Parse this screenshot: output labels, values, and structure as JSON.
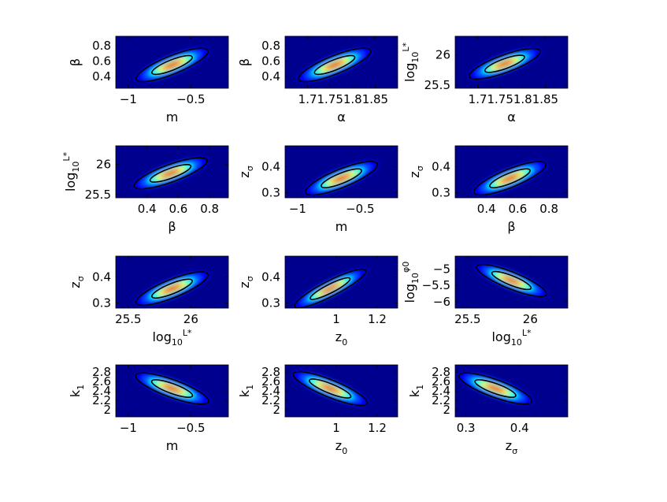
{
  "colormap": [
    "#00008f",
    "#0000ff",
    "#00ffff",
    "#ffff00",
    "#ff0000",
    "#800000"
  ],
  "chart_data": [
    {
      "type": "heatmap",
      "xlabel": {
        "base": "m",
        "sub": "",
        "sup": ""
      },
      "ylabel": {
        "base": "β",
        "sub": "",
        "sup": ""
      },
      "xlim": [
        -1.1,
        -0.2
      ],
      "ylim": [
        0.25,
        0.92
      ],
      "xticks": [
        {
          "v": -1,
          "label": "−1"
        },
        {
          "v": -0.5,
          "label": "−0.5"
        }
      ],
      "yticks": [
        {
          "v": 0.4,
          "label": "0.4"
        },
        {
          "v": 0.6,
          "label": "0.6"
        },
        {
          "v": 0.8,
          "label": "0.8"
        }
      ],
      "peak": {
        "x": -0.65,
        "y": 0.55
      },
      "tilt_deg": -22,
      "spread": [
        0.7,
        0.85
      ],
      "contour_levels": [
        0.35,
        0.06
      ]
    },
    {
      "type": "heatmap",
      "xlabel": {
        "base": "α",
        "sub": "",
        "sup": ""
      },
      "ylabel": {
        "base": "β",
        "sub": "",
        "sup": ""
      },
      "xlim": [
        1.65,
        1.9
      ],
      "ylim": [
        0.25,
        0.92
      ],
      "xticks": [
        {
          "v": 1.7,
          "label": "1.7"
        },
        {
          "v": 1.75,
          "label": "1.75"
        },
        {
          "v": 1.8,
          "label": "1.8"
        },
        {
          "v": 1.85,
          "label": "1.85"
        }
      ],
      "yticks": [
        {
          "v": 0.4,
          "label": "0.4"
        },
        {
          "v": 0.6,
          "label": "0.6"
        },
        {
          "v": 0.8,
          "label": "0.8"
        }
      ],
      "peak": {
        "x": 1.76,
        "y": 0.55
      },
      "tilt_deg": -22,
      "spread": [
        0.7,
        0.85
      ],
      "contour_levels": [
        0.35,
        0.06
      ]
    },
    {
      "type": "heatmap",
      "xlabel": {
        "base": "α",
        "sub": "",
        "sup": ""
      },
      "ylabel": {
        "base": "log",
        "sub": "10",
        "sup": "L*"
      },
      "xlim": [
        1.65,
        1.9
      ],
      "ylim": [
        25.45,
        26.3
      ],
      "xticks": [
        {
          "v": 1.7,
          "label": "1.7"
        },
        {
          "v": 1.75,
          "label": "1.75"
        },
        {
          "v": 1.8,
          "label": "1.8"
        },
        {
          "v": 1.85,
          "label": "1.85"
        }
      ],
      "yticks": [
        {
          "v": 25.5,
          "label": "25.5"
        },
        {
          "v": 26,
          "label": "26"
        }
      ],
      "peak": {
        "x": 1.76,
        "y": 25.85
      },
      "tilt_deg": -20,
      "spread": [
        0.68,
        0.82
      ],
      "contour_levels": [
        0.35,
        0.06
      ]
    },
    {
      "type": "heatmap",
      "xlabel": {
        "base": "β",
        "sub": "",
        "sup": ""
      },
      "ylabel": {
        "base": "log",
        "sub": "10",
        "sup": "L*"
      },
      "xlim": [
        0.2,
        0.92
      ],
      "ylim": [
        25.45,
        26.3
      ],
      "xticks": [
        {
          "v": 0.4,
          "label": "0.4"
        },
        {
          "v": 0.6,
          "label": "0.6"
        },
        {
          "v": 0.8,
          "label": "0.8"
        }
      ],
      "yticks": [
        {
          "v": 25.5,
          "label": "25.5"
        },
        {
          "v": 26,
          "label": "26"
        }
      ],
      "peak": {
        "x": 0.55,
        "y": 25.85
      },
      "tilt_deg": -20,
      "spread": [
        0.7,
        0.82
      ],
      "contour_levels": [
        0.35,
        0.06
      ]
    },
    {
      "type": "heatmap",
      "xlabel": {
        "base": "m",
        "sub": "",
        "sup": ""
      },
      "ylabel": {
        "base": "z",
        "sub": "σ",
        "sup": ""
      },
      "xlim": [
        -1.1,
        -0.2
      ],
      "ylim": [
        0.28,
        0.48
      ],
      "xticks": [
        {
          "v": -1,
          "label": "−1"
        },
        {
          "v": -0.5,
          "label": "−0.5"
        }
      ],
      "yticks": [
        {
          "v": 0.3,
          "label": "0.3"
        },
        {
          "v": 0.4,
          "label": "0.4"
        }
      ],
      "peak": {
        "x": -0.65,
        "y": 0.355
      },
      "tilt_deg": -22,
      "spread": [
        0.7,
        0.85
      ],
      "contour_levels": [
        0.35,
        0.06
      ]
    },
    {
      "type": "heatmap",
      "xlabel": {
        "base": "β",
        "sub": "",
        "sup": ""
      },
      "ylabel": {
        "base": "z",
        "sub": "σ",
        "sup": ""
      },
      "xlim": [
        0.2,
        0.92
      ],
      "ylim": [
        0.28,
        0.48
      ],
      "xticks": [
        {
          "v": 0.4,
          "label": "0.4"
        },
        {
          "v": 0.6,
          "label": "0.6"
        },
        {
          "v": 0.8,
          "label": "0.8"
        }
      ],
      "yticks": [
        {
          "v": 0.3,
          "label": "0.3"
        },
        {
          "v": 0.4,
          "label": "0.4"
        }
      ],
      "peak": {
        "x": 0.55,
        "y": 0.355
      },
      "tilt_deg": -22,
      "spread": [
        0.7,
        0.85
      ],
      "contour_levels": [
        0.35,
        0.06
      ]
    },
    {
      "type": "heatmap",
      "xlabel": {
        "base": "log",
        "sub": "10",
        "sup": "L*"
      },
      "ylabel": {
        "base": "z",
        "sub": "σ",
        "sup": ""
      },
      "xlim": [
        25.4,
        26.3
      ],
      "ylim": [
        0.28,
        0.48
      ],
      "xticks": [
        {
          "v": 25.5,
          "label": "25.5"
        },
        {
          "v": 26,
          "label": "26"
        }
      ],
      "yticks": [
        {
          "v": 0.3,
          "label": "0.3"
        },
        {
          "v": 0.4,
          "label": "0.4"
        }
      ],
      "peak": {
        "x": 25.85,
        "y": 0.355
      },
      "tilt_deg": -22,
      "spread": [
        0.7,
        0.85
      ],
      "contour_levels": [
        0.35,
        0.06
      ]
    },
    {
      "type": "heatmap",
      "xlabel": {
        "base": "z",
        "sub": "0",
        "sup": ""
      },
      "ylabel": {
        "base": "z",
        "sub": "σ",
        "sup": ""
      },
      "xlim": [
        0.75,
        1.3
      ],
      "ylim": [
        0.28,
        0.48
      ],
      "xticks": [
        {
          "v": 1,
          "label": "1"
        },
        {
          "v": 1.2,
          "label": "1.2"
        }
      ],
      "yticks": [
        {
          "v": 0.3,
          "label": "0.3"
        },
        {
          "v": 0.4,
          "label": "0.4"
        }
      ],
      "peak": {
        "x": 0.97,
        "y": 0.355
      },
      "tilt_deg": -27,
      "spread": [
        0.72,
        0.72
      ],
      "contour_levels": [
        0.35,
        0.06
      ]
    },
    {
      "type": "heatmap",
      "xlabel": {
        "base": "log",
        "sub": "10",
        "sup": "L*"
      },
      "ylabel": {
        "base": "log",
        "sub": "10",
        "sup": "φ0"
      },
      "xlim": [
        25.4,
        26.3
      ],
      "ylim": [
        -6.2,
        -4.6
      ],
      "xticks": [
        {
          "v": 25.5,
          "label": "25.5"
        },
        {
          "v": 26,
          "label": "26"
        }
      ],
      "yticks": [
        {
          "v": -6,
          "label": "−6"
        },
        {
          "v": -5.5,
          "label": "−5.5"
        },
        {
          "v": -5,
          "label": "−5"
        }
      ],
      "peak": {
        "x": 25.85,
        "y": -5.35
      },
      "tilt_deg": 22,
      "spread": [
        0.68,
        0.78
      ],
      "contour_levels": [
        0.35,
        0.06
      ]
    },
    {
      "type": "heatmap",
      "xlabel": {
        "base": "m",
        "sub": "",
        "sup": ""
      },
      "ylabel": {
        "base": "k",
        "sub": "1",
        "sup": ""
      },
      "xlim": [
        -1.1,
        -0.2
      ],
      "ylim": [
        1.85,
        2.95
      ],
      "xticks": [
        {
          "v": -1,
          "label": "−1"
        },
        {
          "v": -0.5,
          "label": "−0.5"
        }
      ],
      "yticks": [
        {
          "v": 2,
          "label": "2"
        },
        {
          "v": 2.2,
          "label": "2.2"
        },
        {
          "v": 2.4,
          "label": "2.4"
        },
        {
          "v": 2.6,
          "label": "2.6"
        },
        {
          "v": 2.8,
          "label": "2.8"
        }
      ],
      "peak": {
        "x": -0.65,
        "y": 2.45
      },
      "tilt_deg": 20,
      "spread": [
        0.7,
        0.82
      ],
      "contour_levels": [
        0.35,
        0.06
      ]
    },
    {
      "type": "heatmap",
      "xlabel": {
        "base": "z",
        "sub": "0",
        "sup": ""
      },
      "ylabel": {
        "base": "k",
        "sub": "1",
        "sup": ""
      },
      "xlim": [
        0.75,
        1.3
      ],
      "ylim": [
        1.85,
        2.95
      ],
      "xticks": [
        {
          "v": 1,
          "label": "1"
        },
        {
          "v": 1.2,
          "label": "1.2"
        }
      ],
      "yticks": [
        {
          "v": 2,
          "label": "2"
        },
        {
          "v": 2.2,
          "label": "2.2"
        },
        {
          "v": 2.4,
          "label": "2.4"
        },
        {
          "v": 2.6,
          "label": "2.6"
        },
        {
          "v": 2.8,
          "label": "2.8"
        }
      ],
      "peak": {
        "x": 0.97,
        "y": 2.45
      },
      "tilt_deg": 22,
      "spread": [
        0.72,
        0.8
      ],
      "contour_levels": [
        0.35,
        0.06
      ]
    },
    {
      "type": "heatmap",
      "xlabel": {
        "base": "z",
        "sub": "σ",
        "sup": ""
      },
      "ylabel": {
        "base": "k",
        "sub": "1",
        "sup": ""
      },
      "xlim": [
        0.28,
        0.49
      ],
      "ylim": [
        1.85,
        2.95
      ],
      "xticks": [
        {
          "v": 0.3,
          "label": "0.3"
        },
        {
          "v": 0.4,
          "label": "0.4"
        }
      ],
      "yticks": [
        {
          "v": 2,
          "label": "2"
        },
        {
          "v": 2.2,
          "label": "2.2"
        },
        {
          "v": 2.4,
          "label": "2.4"
        },
        {
          "v": 2.6,
          "label": "2.6"
        },
        {
          "v": 2.8,
          "label": "2.8"
        }
      ],
      "peak": {
        "x": 0.355,
        "y": 2.45
      },
      "tilt_deg": 20,
      "spread": [
        0.7,
        0.82
      ],
      "contour_levels": [
        0.35,
        0.06
      ]
    }
  ]
}
